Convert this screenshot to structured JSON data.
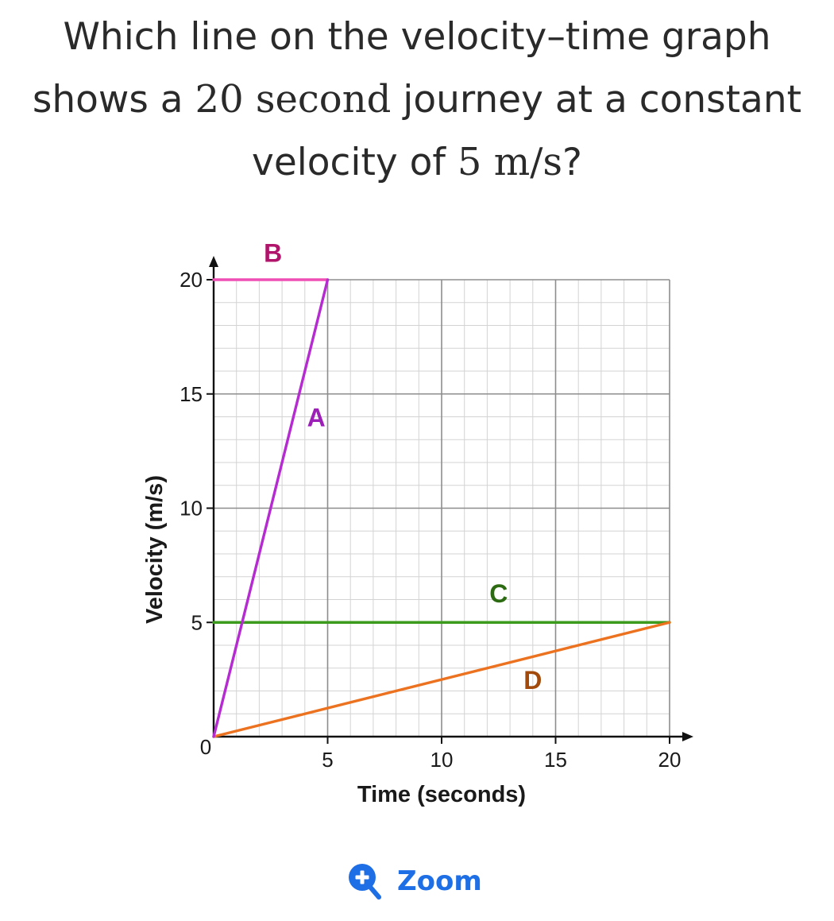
{
  "question": {
    "line1": "Which line on the velocity–time graph",
    "line2_before": "shows a ",
    "line2_math": "20",
    "line2_unit": " second",
    "line2_after": " journey at a constant",
    "line3_before": "velocity of ",
    "line3_math": "5 m/s",
    "line3_after": "?"
  },
  "zoom": {
    "label": "Zoom",
    "icon": "zoom-in-icon",
    "color": "#1e6ee6"
  },
  "chart_data": {
    "type": "line",
    "xlabel": "Time (seconds)",
    "ylabel": "Velocity (m/s)",
    "xlim": [
      0,
      20
    ],
    "ylim": [
      0,
      20
    ],
    "x_ticks": [
      5,
      10,
      15,
      20
    ],
    "y_ticks": [
      5,
      10,
      15,
      20
    ],
    "origin_label": "0",
    "grid": true,
    "minor_grid_step": 1,
    "series": [
      {
        "name": "A",
        "color": "#b52bd1",
        "points": [
          [
            0,
            0
          ],
          [
            5,
            20
          ]
        ],
        "label_at": [
          4.5,
          14
        ]
      },
      {
        "name": "B",
        "color": "#ef4fb4",
        "points": [
          [
            0,
            20
          ],
          [
            5,
            20
          ]
        ],
        "label_at": [
          2.6,
          21.2
        ]
      },
      {
        "name": "C",
        "color": "#3c9a1c",
        "points": [
          [
            0,
            5
          ],
          [
            20,
            5
          ]
        ],
        "label_at": [
          12.5,
          6.3
        ]
      },
      {
        "name": "D",
        "color": "#ec7220",
        "points": [
          [
            0,
            0
          ],
          [
            20,
            5
          ]
        ],
        "label_at": [
          14,
          2.5
        ]
      }
    ],
    "label_colors": {
      "A": "#9c1fb8",
      "B": "#b1156b",
      "C": "#2c6b12",
      "D": "#a14a0c"
    }
  }
}
